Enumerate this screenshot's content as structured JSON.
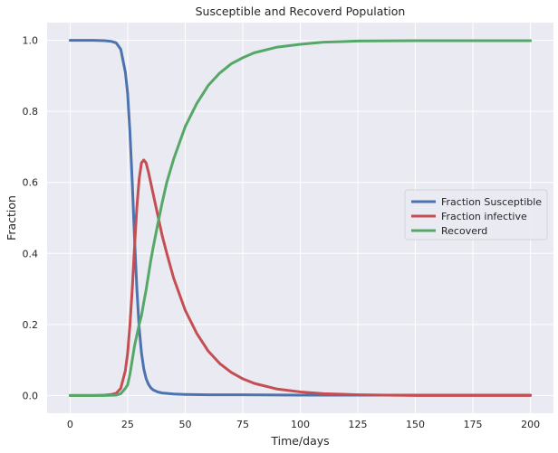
{
  "chart_data": {
    "type": "line",
    "title": "Susceptible and Recoverd Population",
    "xlabel": "Time/days",
    "ylabel": "Fraction",
    "xlim": [
      -10,
      210
    ],
    "ylim": [
      -0.05,
      1.05
    ],
    "xticks": [
      0,
      25,
      50,
      75,
      100,
      125,
      150,
      175,
      200
    ],
    "yticks": [
      0.0,
      0.2,
      0.4,
      0.6,
      0.8,
      1.0
    ],
    "xtick_labels": [
      "0",
      "25",
      "50",
      "75",
      "100",
      "125",
      "150",
      "175",
      "200"
    ],
    "ytick_labels": [
      "0.0",
      "0.2",
      "0.4",
      "0.6",
      "0.8",
      "1.0"
    ],
    "grid": true,
    "legend_position": "center-right",
    "background_color": "#eaeaf2",
    "series": [
      {
        "name": "Fraction Susceptible",
        "color": "#4c72b0",
        "x": [
          0,
          10,
          15,
          18,
          20,
          22,
          24,
          25,
          26,
          27,
          28,
          29,
          30,
          31,
          32,
          33,
          34,
          35,
          36,
          38,
          40,
          45,
          50,
          60,
          75,
          100,
          125,
          150,
          175,
          200
        ],
        "y": [
          1.0,
          1.0,
          0.999,
          0.997,
          0.993,
          0.975,
          0.91,
          0.85,
          0.74,
          0.6,
          0.44,
          0.3,
          0.19,
          0.12,
          0.075,
          0.048,
          0.032,
          0.022,
          0.016,
          0.01,
          0.007,
          0.004,
          0.003,
          0.002,
          0.002,
          0.001,
          0.001,
          0.001,
          0.001,
          0.001
        ]
      },
      {
        "name": "Fraction infective",
        "color": "#c44e52",
        "x": [
          0,
          10,
          15,
          18,
          20,
          22,
          24,
          25,
          26,
          27,
          28,
          29,
          30,
          31,
          32,
          33,
          34,
          35,
          36,
          38,
          40,
          42,
          45,
          50,
          55,
          60,
          65,
          70,
          75,
          80,
          90,
          100,
          110,
          125,
          150,
          175,
          200
        ],
        "y": [
          0.0,
          0.0,
          0.001,
          0.003,
          0.006,
          0.02,
          0.07,
          0.12,
          0.2,
          0.3,
          0.42,
          0.53,
          0.61,
          0.655,
          0.663,
          0.655,
          0.63,
          0.6,
          0.57,
          0.51,
          0.45,
          0.4,
          0.33,
          0.24,
          0.175,
          0.125,
          0.09,
          0.065,
          0.047,
          0.034,
          0.018,
          0.01,
          0.005,
          0.002,
          0.0,
          0.0,
          0.0
        ]
      },
      {
        "name": "Recoverd",
        "color": "#55a868",
        "x": [
          0,
          15,
          20,
          22,
          24,
          25,
          26,
          27,
          28,
          29,
          30,
          31,
          32,
          33,
          34,
          35,
          36,
          38,
          40,
          42,
          45,
          50,
          55,
          60,
          65,
          70,
          75,
          80,
          90,
          100,
          110,
          125,
          150,
          175,
          200
        ],
        "y": [
          0.0,
          0.0,
          0.001,
          0.005,
          0.02,
          0.03,
          0.06,
          0.1,
          0.14,
          0.17,
          0.2,
          0.225,
          0.262,
          0.297,
          0.338,
          0.378,
          0.414,
          0.48,
          0.543,
          0.6,
          0.666,
          0.757,
          0.822,
          0.873,
          0.908,
          0.934,
          0.951,
          0.965,
          0.981,
          0.989,
          0.995,
          0.998,
          0.999,
          0.999,
          0.999
        ]
      }
    ]
  }
}
